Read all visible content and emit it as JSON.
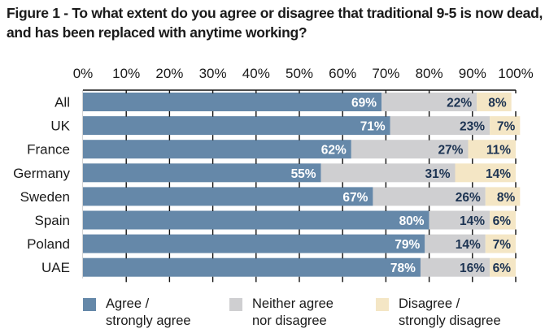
{
  "title_lines": [
    "Figure 1 - To what extent do you agree or disagree that traditional 9-5 is now dead,",
    "and has been replaced with anytime working?"
  ],
  "colors": {
    "agree": "#6588a9",
    "neither": "#cfcfd1",
    "disagree": "#f4e6c5",
    "label_on_agree": "#ffffff",
    "label_on_other": "#1c3352",
    "axis": "#111111"
  },
  "legend": [
    {
      "key": "agree",
      "lines": [
        "Agree /",
        "strongly agree"
      ]
    },
    {
      "key": "neither",
      "lines": [
        "Neither agree",
        "nor disagree"
      ]
    },
    {
      "key": "disagree",
      "lines": [
        "Disagree /",
        "strongly disagree"
      ]
    }
  ],
  "chart_data": {
    "type": "bar",
    "orientation": "horizontal",
    "stacked": true,
    "title": "Figure 1 - To what extent do you agree or disagree that traditional 9-5 is now dead, and has been replaced with anytime working?",
    "xlabel": "",
    "ylabel": "",
    "xlim": [
      0,
      100
    ],
    "x_ticks": [
      "0%",
      "10%",
      "20%",
      "30%",
      "40%",
      "50%",
      "60%",
      "70%",
      "80%",
      "90%",
      "100%"
    ],
    "x_axis_position": "top",
    "grid": false,
    "legend_position": "bottom",
    "categories": [
      "All",
      "UK",
      "France",
      "Germany",
      "Sweden",
      "Spain",
      "Poland",
      "UAE"
    ],
    "series": [
      {
        "name": "Agree / strongly agree",
        "key": "agree",
        "values": [
          69,
          71,
          62,
          55,
          67,
          80,
          79,
          78
        ]
      },
      {
        "name": "Neither agree nor disagree",
        "key": "neither",
        "values": [
          22,
          23,
          27,
          31,
          26,
          14,
          14,
          16
        ]
      },
      {
        "name": "Disagree / strongly disagree",
        "key": "disagree",
        "values": [
          8,
          7,
          11,
          14,
          8,
          6,
          7,
          6
        ]
      }
    ]
  }
}
